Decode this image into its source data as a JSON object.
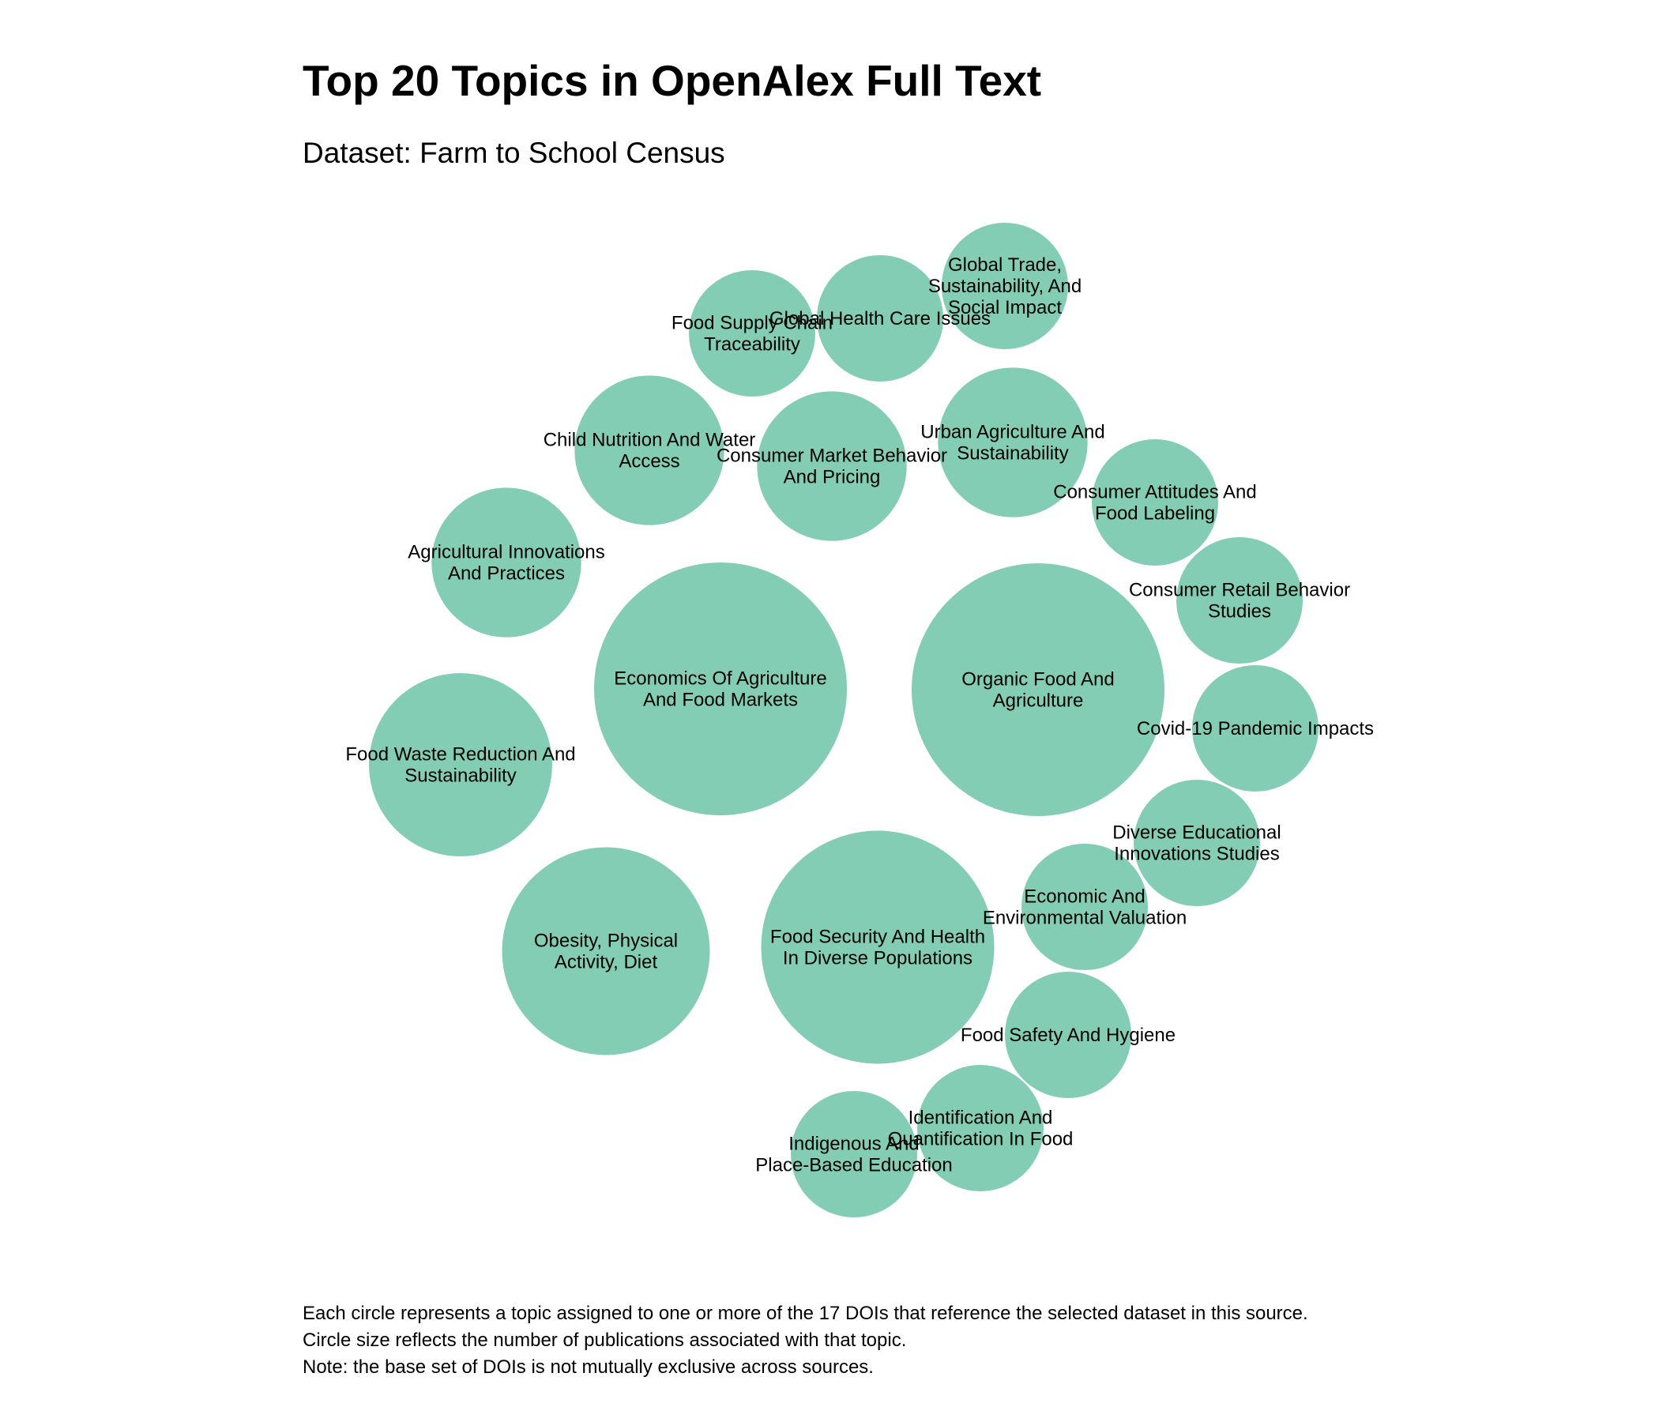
{
  "chart_data": {
    "type": "bubble",
    "title": "Top 20 Topics in OpenAlex Full Text",
    "subtitle": "Dataset: Farm to School Census",
    "color": "#84cdb5",
    "bubbles": [
      {
        "name": "Organic Food And Agriculture",
        "label": [
          "Organic Food And",
          "Agriculture"
        ],
        "value": 4
      },
      {
        "name": "Economics Of Agriculture And Food Markets",
        "label": [
          "Economics Of Agriculture",
          "And Food Markets"
        ],
        "value": 4
      },
      {
        "name": "Food Security And Health In Diverse Populations",
        "label": [
          "Food Security And Health",
          "In Diverse Populations"
        ],
        "value": 3.4
      },
      {
        "name": "Obesity, Physical Activity, Diet",
        "label": [
          "Obesity, Physical",
          "Activity, Diet"
        ],
        "value": 2.7
      },
      {
        "name": "Food Waste Reduction And Sustainability",
        "label": [
          "Food Waste Reduction And",
          "Sustainability"
        ],
        "value": 2.1
      },
      {
        "name": "Agricultural Innovations And Practices",
        "label": [
          "Agricultural Innovations",
          "And Practices"
        ],
        "value": 1.4
      },
      {
        "name": "Child Nutrition And Water Access",
        "label": [
          "Child Nutrition And Water",
          "Access"
        ],
        "value": 1.4
      },
      {
        "name": "Consumer Market Behavior And Pricing",
        "label": [
          "Consumer Market Behavior",
          "And Pricing"
        ],
        "value": 1.4
      },
      {
        "name": "Urban Agriculture And Sustainability",
        "label": [
          "Urban Agriculture And",
          "Sustainability"
        ],
        "value": 1.4
      },
      {
        "name": "Food Supply Chain Traceability",
        "label": [
          "Food Supply Chain",
          "Traceability"
        ],
        "value": 1
      },
      {
        "name": "Global Health Care Issues",
        "label": [
          "Global Health Care Issues"
        ],
        "value": 1
      },
      {
        "name": "Global Trade, Sustainability, And Social Impact",
        "label": [
          "Global Trade,",
          "Sustainability, And",
          "Social Impact"
        ],
        "value": 1
      },
      {
        "name": "Consumer Attitudes And Food Labeling",
        "label": [
          "Consumer Attitudes And",
          "Food Labeling"
        ],
        "value": 1
      },
      {
        "name": "Consumer Retail Behavior Studies",
        "label": [
          "Consumer Retail Behavior",
          "Studies"
        ],
        "value": 1
      },
      {
        "name": "Covid-19 Pandemic Impacts",
        "label": [
          "Covid-19 Pandemic Impacts"
        ],
        "value": 1
      },
      {
        "name": "Diverse Educational Innovations Studies",
        "label": [
          "Diverse Educational",
          "Innovations Studies"
        ],
        "value": 1
      },
      {
        "name": "Economic And Environmental Valuation",
        "label": [
          "Economic And",
          "Environmental Valuation"
        ],
        "value": 1
      },
      {
        "name": "Food Safety And Hygiene",
        "label": [
          "Food Safety And Hygiene"
        ],
        "value": 1
      },
      {
        "name": "Identification And Quantification In Food",
        "label": [
          "Identification And",
          "Quantification In Food"
        ],
        "value": 1
      },
      {
        "name": "Indigenous And Place-Based Education",
        "label": [
          "Indigenous And",
          "Place-Based Education"
        ],
        "value": 1
      }
    ]
  },
  "caption": {
    "lines": [
      "Each circle represents a topic assigned to one or more of the 17 DOIs that reference the selected dataset in this source.",
      "Circle size reflects the number of publications associated with that topic.",
      "Note: the base set of DOIs is not mutually exclusive across sources."
    ]
  }
}
